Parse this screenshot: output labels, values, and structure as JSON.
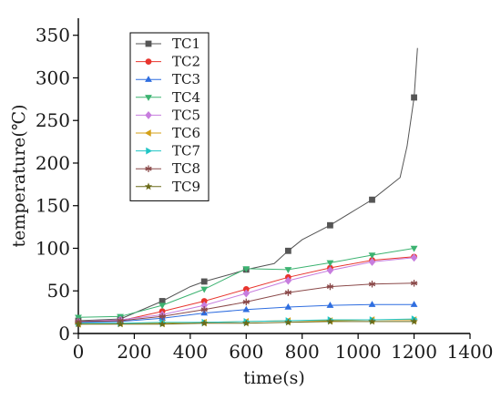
{
  "chart_data": {
    "type": "line",
    "xlabel": "time(s)",
    "ylabel": "temperature(℃)",
    "xlim": [
      0,
      1400
    ],
    "ylim": [
      0,
      370
    ],
    "x_ticks": [
      0,
      200,
      400,
      600,
      800,
      1000,
      1200,
      1400
    ],
    "y_ticks": [
      0,
      50,
      100,
      150,
      200,
      250,
      300,
      350
    ],
    "grid": false,
    "legend_position": "top-left",
    "x_markers": [
      0,
      150,
      300,
      450,
      600,
      750,
      900,
      1050,
      1200
    ],
    "series": [
      {
        "name": "TC1",
        "color": "#555555",
        "marker": "square",
        "x": [
          0,
          150,
          300,
          400,
          450,
          550,
          600,
          700,
          750,
          800,
          900,
          1000,
          1050,
          1150,
          1175,
          1200,
          1212
        ],
        "y": [
          15,
          17,
          38,
          55,
          61,
          70,
          75,
          82,
          97,
          110,
          127,
          147,
          157,
          183,
          220,
          277,
          335
        ]
      },
      {
        "name": "TC2",
        "color": "#e8352e",
        "marker": "circle",
        "x": [
          0,
          150,
          300,
          450,
          600,
          750,
          900,
          1050,
          1200
        ],
        "y": [
          13,
          15,
          26,
          38,
          52,
          66,
          77,
          86,
          90
        ]
      },
      {
        "name": "TC3",
        "color": "#2f6ee0",
        "marker": "triangle-up",
        "x": [
          0,
          150,
          300,
          450,
          600,
          750,
          900,
          1050,
          1200
        ],
        "y": [
          13,
          14,
          18,
          24,
          28,
          31,
          33,
          34,
          34
        ]
      },
      {
        "name": "TC4",
        "color": "#3cb371",
        "marker": "triangle-down",
        "x": [
          0,
          150,
          300,
          450,
          600,
          750,
          900,
          1050,
          1200
        ],
        "y": [
          19,
          20,
          33,
          52,
          76,
          75,
          83,
          92,
          100
        ]
      },
      {
        "name": "TC5",
        "color": "#c77dde",
        "marker": "diamond",
        "x": [
          0,
          150,
          300,
          450,
          600,
          750,
          900,
          1050,
          1200
        ],
        "y": [
          14,
          16,
          22,
          33,
          47,
          62,
          74,
          84,
          89
        ]
      },
      {
        "name": "TC6",
        "color": "#d4a017",
        "marker": "triangle-left",
        "x": [
          0,
          150,
          300,
          450,
          600,
          750,
          900,
          1050,
          1200
        ],
        "y": [
          11,
          12,
          12,
          13,
          14,
          15,
          15,
          16,
          16
        ]
      },
      {
        "name": "TC7",
        "color": "#20c5c5",
        "marker": "triangle-right",
        "x": [
          0,
          150,
          300,
          450,
          600,
          750,
          900,
          1050,
          1200
        ],
        "y": [
          12,
          12,
          13,
          13,
          14,
          15,
          16,
          16,
          17
        ]
      },
      {
        "name": "TC8",
        "color": "#8b4a4a",
        "marker": "asterisk",
        "x": [
          0,
          150,
          300,
          450,
          600,
          750,
          900,
          1050,
          1200
        ],
        "y": [
          14,
          15,
          20,
          28,
          37,
          48,
          55,
          58,
          59
        ]
      },
      {
        "name": "TC9",
        "color": "#6b6b1a",
        "marker": "star",
        "x": [
          0,
          150,
          300,
          450,
          600,
          750,
          900,
          1050,
          1200
        ],
        "y": [
          11,
          11,
          11,
          12,
          12,
          13,
          14,
          14,
          14
        ]
      }
    ]
  }
}
